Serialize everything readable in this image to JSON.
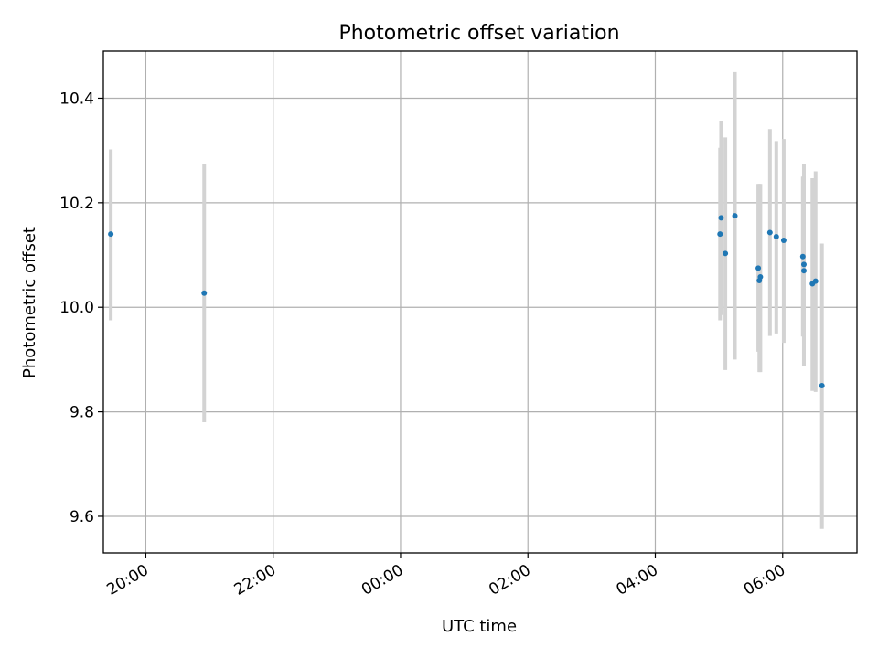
{
  "chart_data": {
    "type": "scatter",
    "title": "Photometric offset variation",
    "xlabel": "UTC time",
    "ylabel": "Photometric offset",
    "x_axis": "time",
    "x_range": [
      "19:20",
      "07:10"
    ],
    "x_day_break_after": "23:59",
    "ylim": [
      9.53,
      10.49
    ],
    "x_ticks": [
      "20:00",
      "22:00",
      "00:00",
      "02:00",
      "04:00",
      "06:00"
    ],
    "y_ticks": [
      9.6,
      9.8,
      10.0,
      10.2,
      10.4
    ],
    "grid": true,
    "marker_color": "#1f77b4",
    "errorbar_color": "#d3d3d3",
    "points": [
      {
        "t": "19:27",
        "y": 10.14,
        "lo": 9.975,
        "hi": 10.302
      },
      {
        "t": "20:55",
        "y": 10.027,
        "lo": 9.78,
        "hi": 10.274
      },
      {
        "t": "05:01",
        "y": 10.14,
        "lo": 9.975,
        "hi": 10.305
      },
      {
        "t": "05:02",
        "y": 10.171,
        "lo": 9.985,
        "hi": 10.357
      },
      {
        "t": "05:06",
        "y": 10.103,
        "lo": 9.88,
        "hi": 10.325
      },
      {
        "t": "05:15",
        "y": 10.175,
        "lo": 9.9,
        "hi": 10.45
      },
      {
        "t": "05:37",
        "y": 10.075,
        "lo": 9.915,
        "hi": 10.236
      },
      {
        "t": "05:38",
        "y": 10.051,
        "lo": 9.876,
        "hi": 10.236
      },
      {
        "t": "05:39",
        "y": 10.058,
        "lo": 9.876,
        "hi": 10.236
      },
      {
        "t": "05:48",
        "y": 10.143,
        "lo": 9.945,
        "hi": 10.341
      },
      {
        "t": "05:54",
        "y": 10.135,
        "lo": 9.95,
        "hi": 10.318
      },
      {
        "t": "06:01",
        "y": 10.128,
        "lo": 9.932,
        "hi": 10.322
      },
      {
        "t": "06:19",
        "y": 10.097,
        "lo": 9.944,
        "hi": 10.25
      },
      {
        "t": "06:20",
        "y": 10.082,
        "lo": 9.888,
        "hi": 10.275
      },
      {
        "t": "06:20",
        "y": 10.07,
        "lo": 9.888,
        "hi": 10.25
      },
      {
        "t": "06:28",
        "y": 10.045,
        "lo": 9.84,
        "hi": 10.247
      },
      {
        "t": "06:31",
        "y": 10.05,
        "lo": 9.838,
        "hi": 10.26
      },
      {
        "t": "06:37",
        "y": 9.85,
        "lo": 9.576,
        "hi": 10.122
      }
    ]
  }
}
